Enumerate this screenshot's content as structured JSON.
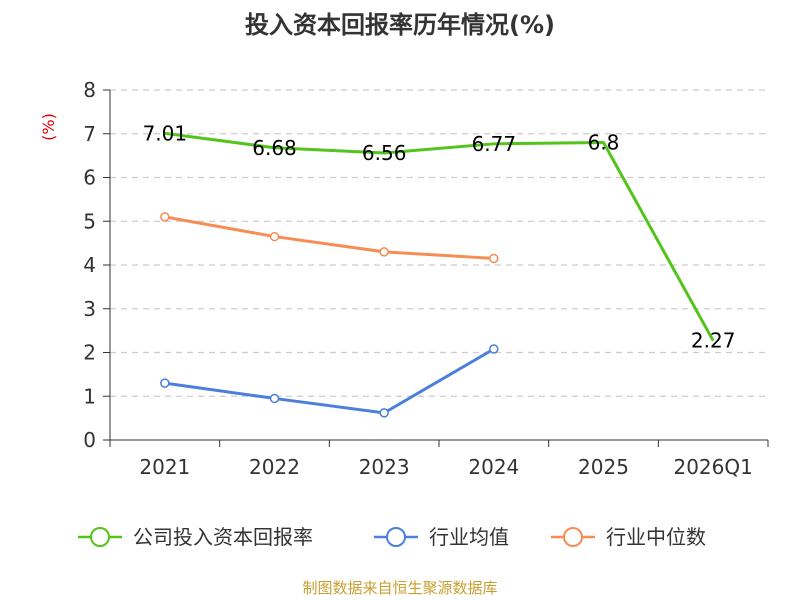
{
  "chart_data": {
    "type": "line",
    "title": "投入资本回报率历年情况(%)",
    "ylabel": "(%)",
    "categories": [
      "2021",
      "2022",
      "2023",
      "2024",
      "2025",
      "2026Q1"
    ],
    "ylim": [
      0,
      8
    ],
    "yticks": [
      0,
      1,
      2,
      3,
      4,
      5,
      6,
      7,
      8
    ],
    "grid": true,
    "legend_position": "bottom",
    "series": [
      {
        "name": "公司投入资本回报率",
        "color": "#52c41a",
        "markers": false,
        "show_labels": true,
        "values": [
          7.01,
          6.68,
          6.56,
          6.77,
          6.8,
          2.27
        ],
        "labels": [
          "7.01",
          "6.68",
          "6.56",
          "6.77",
          "6.8",
          "2.27"
        ]
      },
      {
        "name": "行业均值",
        "color": "#4a7fdc",
        "markers": true,
        "show_labels": false,
        "values": [
          1.3,
          0.95,
          0.62,
          2.08,
          null,
          null
        ]
      },
      {
        "name": "行业中位数",
        "color": "#f78c55",
        "markers": true,
        "show_labels": false,
        "values": [
          5.1,
          4.65,
          4.3,
          4.15,
          null,
          null
        ]
      }
    ],
    "source": "制图数据来自恒生聚源数据库",
    "colors": {
      "axis": "#333333",
      "grid": "#cccccc",
      "unit": "#e00000",
      "source": "#c8a030"
    }
  }
}
